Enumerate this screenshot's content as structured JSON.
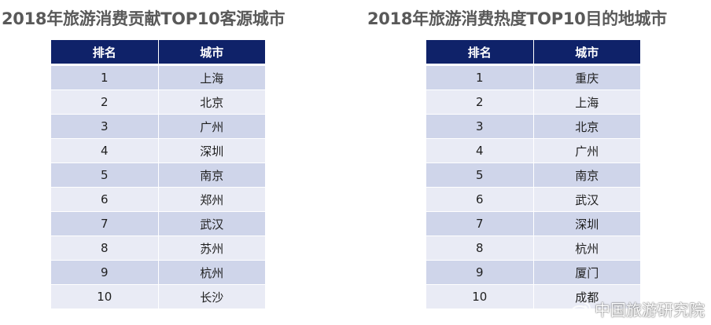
{
  "left_panel": {
    "title": "2018年旅游消费贡献TOP10客源城市",
    "headers": [
      "排名",
      "城市"
    ],
    "rows": [
      {
        "rank": "1",
        "city": "上海"
      },
      {
        "rank": "2",
        "city": "北京"
      },
      {
        "rank": "3",
        "city": "广州"
      },
      {
        "rank": "4",
        "city": "深圳"
      },
      {
        "rank": "5",
        "city": "南京"
      },
      {
        "rank": "6",
        "city": "郑州"
      },
      {
        "rank": "7",
        "city": "武汉"
      },
      {
        "rank": "8",
        "city": "苏州"
      },
      {
        "rank": "9",
        "city": "杭州"
      },
      {
        "rank": "10",
        "city": "长沙"
      }
    ]
  },
  "right_panel": {
    "title": "2018年旅游消费热度TOP10目的地城市",
    "headers": [
      "排名",
      "城市"
    ],
    "rows": [
      {
        "rank": "1",
        "city": "重庆"
      },
      {
        "rank": "2",
        "city": "上海"
      },
      {
        "rank": "3",
        "city": "北京"
      },
      {
        "rank": "4",
        "city": "广州"
      },
      {
        "rank": "5",
        "city": "南京"
      },
      {
        "rank": "6",
        "city": "武汉"
      },
      {
        "rank": "7",
        "city": "深圳"
      },
      {
        "rank": "8",
        "city": "杭州"
      },
      {
        "rank": "9",
        "city": "厦门"
      },
      {
        "rank": "10",
        "city": "成都"
      }
    ]
  },
  "watermark": {
    "text": "中国旅游研究院",
    "icon": "weibo-icon"
  },
  "colors": {
    "header_bg": "#0f2269",
    "row_dark": "#cfd5ea",
    "row_light": "#e9ebf5",
    "title_text": "#595959"
  }
}
